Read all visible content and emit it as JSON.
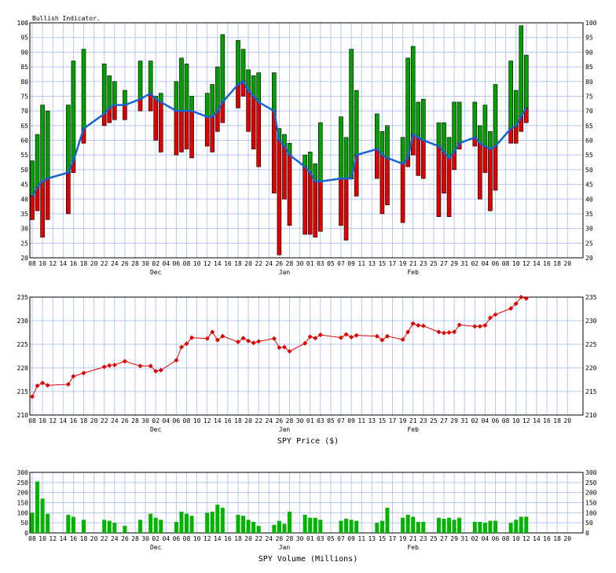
{
  "x_tick_labels": [
    "08",
    "10",
    "12",
    "14",
    "16",
    "18",
    "20",
    "22",
    "24",
    "26",
    "28",
    "30",
    "02",
    "04",
    "06",
    "08",
    "10",
    "12",
    "14",
    "16",
    "18",
    "20",
    "22",
    "24",
    "26",
    "28",
    "30",
    "01",
    "03",
    "05",
    "07",
    "09",
    "11",
    "13",
    "15",
    "17",
    "19",
    "21",
    "23",
    "25",
    "27",
    "29",
    "31",
    "02",
    "04",
    "06",
    "08",
    "10",
    "12",
    "14",
    "16",
    "18",
    "20"
  ],
  "month_labels": [
    {
      "label": "Dec",
      "slot": 24
    },
    {
      "label": "Jan",
      "slot": 49
    },
    {
      "label": "Feb",
      "slot": 74
    }
  ],
  "colors": {
    "up": "#00a000",
    "down": "#e00000",
    "line": "#1464d2",
    "price": "#e00000",
    "grid": "#b4c8f0",
    "volume": "#00b400"
  },
  "chart_data": [
    {
      "type": "bar",
      "title": "Bullish Indicator.",
      "ylim": [
        20,
        100
      ],
      "yticks": [
        20,
        25,
        30,
        35,
        40,
        45,
        50,
        55,
        60,
        65,
        70,
        75,
        80,
        85,
        90,
        95,
        100
      ],
      "candles": [
        {
          "slot": 0,
          "high": 53,
          "low": 33,
          "avg": 41
        },
        {
          "slot": 1,
          "high": 62,
          "low": 36,
          "avg": 44
        },
        {
          "slot": 2,
          "high": 72,
          "low": 27,
          "avg": 46
        },
        {
          "slot": 3,
          "high": 70,
          "low": 33,
          "avg": 47
        },
        {
          "slot": 7,
          "high": 72,
          "low": 35,
          "avg": 49
        },
        {
          "slot": 8,
          "high": 87,
          "low": 49,
          "avg": 53
        },
        {
          "slot": 10,
          "high": 91,
          "low": 59,
          "avg": 64
        },
        {
          "slot": 14,
          "high": 86,
          "low": 65,
          "avg": 69
        },
        {
          "slot": 15,
          "high": 82,
          "low": 66,
          "avg": 71
        },
        {
          "slot": 16,
          "high": 80,
          "low": 67,
          "avg": 72
        },
        {
          "slot": 18,
          "high": 77,
          "low": 67,
          "avg": 72
        },
        {
          "slot": 21,
          "high": 87,
          "low": 70,
          "avg": 74
        },
        {
          "slot": 23,
          "high": 87,
          "low": 70,
          "avg": 76
        },
        {
          "slot": 24,
          "high": 75,
          "low": 60,
          "avg": 74
        },
        {
          "slot": 25,
          "high": 76,
          "low": 56,
          "avg": 73
        },
        {
          "slot": 28,
          "high": 80,
          "low": 55,
          "avg": 70
        },
        {
          "slot": 29,
          "high": 88,
          "low": 56,
          "avg": 70
        },
        {
          "slot": 30,
          "high": 86,
          "low": 57,
          "avg": 70
        },
        {
          "slot": 31,
          "high": 75,
          "low": 54,
          "avg": 70
        },
        {
          "slot": 34,
          "high": 76,
          "low": 58,
          "avg": 68
        },
        {
          "slot": 35,
          "high": 79,
          "low": 56,
          "avg": 68
        },
        {
          "slot": 36,
          "high": 85,
          "low": 63,
          "avg": 70
        },
        {
          "slot": 37,
          "high": 96,
          "low": 66,
          "avg": 73
        },
        {
          "slot": 40,
          "high": 94,
          "low": 71,
          "avg": 79
        },
        {
          "slot": 41,
          "high": 91,
          "low": 75,
          "avg": 80
        },
        {
          "slot": 42,
          "high": 84,
          "low": 63,
          "avg": 77
        },
        {
          "slot": 43,
          "high": 82,
          "low": 57,
          "avg": 75
        },
        {
          "slot": 44,
          "high": 83,
          "low": 51,
          "avg": 73
        },
        {
          "slot": 47,
          "high": 83,
          "low": 42,
          "avg": 70
        },
        {
          "slot": 48,
          "high": 64,
          "low": 21,
          "avg": 60
        },
        {
          "slot": 49,
          "high": 62,
          "low": 40,
          "avg": 58
        },
        {
          "slot": 50,
          "high": 59,
          "low": 31,
          "avg": 55
        },
        {
          "slot": 53,
          "high": 55,
          "low": 28,
          "avg": 51
        },
        {
          "slot": 54,
          "high": 56,
          "low": 28,
          "avg": 49
        },
        {
          "slot": 55,
          "high": 52,
          "low": 27,
          "avg": 46
        },
        {
          "slot": 56,
          "high": 66,
          "low": 29,
          "avg": 46
        },
        {
          "slot": 60,
          "high": 68,
          "low": 31,
          "avg": 47
        },
        {
          "slot": 61,
          "high": 61,
          "low": 26,
          "avg": 47
        },
        {
          "slot": 62,
          "high": 91,
          "low": 47,
          "avg": 47
        },
        {
          "slot": 63,
          "high": 77,
          "low": 41,
          "avg": 55
        },
        {
          "slot": 67,
          "high": 69,
          "low": 47,
          "avg": 57
        },
        {
          "slot": 68,
          "high": 63,
          "low": 35,
          "avg": 55
        },
        {
          "slot": 69,
          "high": 65,
          "low": 38,
          "avg": 54
        },
        {
          "slot": 72,
          "high": 61,
          "low": 32,
          "avg": 52
        },
        {
          "slot": 73,
          "high": 88,
          "low": 51,
          "avg": 54
        },
        {
          "slot": 74,
          "high": 92,
          "low": 55,
          "avg": 62
        },
        {
          "slot": 75,
          "high": 73,
          "low": 48,
          "avg": 61
        },
        {
          "slot": 76,
          "high": 74,
          "low": 47,
          "avg": 60
        },
        {
          "slot": 79,
          "high": 66,
          "low": 34,
          "avg": 58
        },
        {
          "slot": 80,
          "high": 66,
          "low": 42,
          "avg": 56
        },
        {
          "slot": 81,
          "high": 61,
          "low": 34,
          "avg": 54
        },
        {
          "slot": 82,
          "high": 73,
          "low": 50,
          "avg": 56
        },
        {
          "slot": 83,
          "high": 73,
          "low": 57,
          "avg": 59
        },
        {
          "slot": 86,
          "high": 73,
          "low": 58,
          "avg": 61
        },
        {
          "slot": 87,
          "high": 65,
          "low": 40,
          "avg": 59
        },
        {
          "slot": 88,
          "high": 72,
          "low": 49,
          "avg": 58
        },
        {
          "slot": 89,
          "high": 63,
          "low": 36,
          "avg": 57
        },
        {
          "slot": 90,
          "high": 79,
          "low": 43,
          "avg": 58
        },
        {
          "slot": 93,
          "high": 87,
          "low": 59,
          "avg": 64
        },
        {
          "slot": 94,
          "high": 77,
          "low": 59,
          "avg": 65
        },
        {
          "slot": 95,
          "high": 99,
          "low": 63,
          "avg": 68
        },
        {
          "slot": 96,
          "high": 89,
          "low": 66,
          "avg": 71
        }
      ]
    },
    {
      "type": "line",
      "xlabel": "SPY Price ($)",
      "ylim": [
        210,
        235
      ],
      "yticks": [
        210,
        215,
        220,
        225,
        230,
        235
      ],
      "points": [
        {
          "slot": 0,
          "value": 213.9
        },
        {
          "slot": 1,
          "value": 216.2
        },
        {
          "slot": 2,
          "value": 216.8
        },
        {
          "slot": 3,
          "value": 216.3
        },
        {
          "slot": 7,
          "value": 216.5
        },
        {
          "slot": 8,
          "value": 218.2
        },
        {
          "slot": 10,
          "value": 218.9
        },
        {
          "slot": 14,
          "value": 220.2
        },
        {
          "slot": 15,
          "value": 220.5
        },
        {
          "slot": 16,
          "value": 220.6
        },
        {
          "slot": 18,
          "value": 221.4
        },
        {
          "slot": 21,
          "value": 220.4
        },
        {
          "slot": 23,
          "value": 220.4
        },
        {
          "slot": 24,
          "value": 219.3
        },
        {
          "slot": 25,
          "value": 219.5
        },
        {
          "slot": 28,
          "value": 221.6
        },
        {
          "slot": 29,
          "value": 224.4
        },
        {
          "slot": 30,
          "value": 225.1
        },
        {
          "slot": 31,
          "value": 226.4
        },
        {
          "slot": 34,
          "value": 226.2
        },
        {
          "slot": 35,
          "value": 227.6
        },
        {
          "slot": 36,
          "value": 225.9
        },
        {
          "slot": 37,
          "value": 226.7
        },
        {
          "slot": 40,
          "value": 225.5
        },
        {
          "slot": 41,
          "value": 226.3
        },
        {
          "slot": 42,
          "value": 225.7
        },
        {
          "slot": 43,
          "value": 225.3
        },
        {
          "slot": 44,
          "value": 225.6
        },
        {
          "slot": 47,
          "value": 226.2
        },
        {
          "slot": 48,
          "value": 224.3
        },
        {
          "slot": 49,
          "value": 224.4
        },
        {
          "slot": 50,
          "value": 223.5
        },
        {
          "slot": 53,
          "value": 225.2
        },
        {
          "slot": 54,
          "value": 226.6
        },
        {
          "slot": 55,
          "value": 226.3
        },
        {
          "slot": 56,
          "value": 227.0
        },
        {
          "slot": 60,
          "value": 226.4
        },
        {
          "slot": 61,
          "value": 227.1
        },
        {
          "slot": 62,
          "value": 226.5
        },
        {
          "slot": 63,
          "value": 226.9
        },
        {
          "slot": 67,
          "value": 226.7
        },
        {
          "slot": 68,
          "value": 225.9
        },
        {
          "slot": 69,
          "value": 226.7
        },
        {
          "slot": 72,
          "value": 226.0
        },
        {
          "slot": 73,
          "value": 227.6
        },
        {
          "slot": 74,
          "value": 229.4
        },
        {
          "slot": 75,
          "value": 229.0
        },
        {
          "slot": 76,
          "value": 228.9
        },
        {
          "slot": 79,
          "value": 227.6
        },
        {
          "slot": 80,
          "value": 227.4
        },
        {
          "slot": 81,
          "value": 227.5
        },
        {
          "slot": 82,
          "value": 227.6
        },
        {
          "slot": 83,
          "value": 229.1
        },
        {
          "slot": 86,
          "value": 228.8
        },
        {
          "slot": 87,
          "value": 228.8
        },
        {
          "slot": 88,
          "value": 229.0
        },
        {
          "slot": 89,
          "value": 230.6
        },
        {
          "slot": 90,
          "value": 231.3
        },
        {
          "slot": 93,
          "value": 232.6
        },
        {
          "slot": 94,
          "value": 233.6
        },
        {
          "slot": 95,
          "value": 235.0
        },
        {
          "slot": 96,
          "value": 234.7
        }
      ]
    },
    {
      "type": "bar",
      "xlabel": "SPY Volume (Millions)",
      "ylim": [
        0,
        300
      ],
      "yticks": [
        0,
        50,
        100,
        150,
        200,
        250,
        300
      ],
      "bars": [
        {
          "slot": 0,
          "value": 100
        },
        {
          "slot": 1,
          "value": 255
        },
        {
          "slot": 2,
          "value": 170
        },
        {
          "slot": 3,
          "value": 95
        },
        {
          "slot": 7,
          "value": 90
        },
        {
          "slot": 8,
          "value": 80
        },
        {
          "slot": 10,
          "value": 65
        },
        {
          "slot": 14,
          "value": 65
        },
        {
          "slot": 15,
          "value": 60
        },
        {
          "slot": 16,
          "value": 50
        },
        {
          "slot": 18,
          "value": 35
        },
        {
          "slot": 21,
          "value": 65
        },
        {
          "slot": 23,
          "value": 95
        },
        {
          "slot": 24,
          "value": 75
        },
        {
          "slot": 25,
          "value": 65
        },
        {
          "slot": 28,
          "value": 55
        },
        {
          "slot": 29,
          "value": 105
        },
        {
          "slot": 30,
          "value": 95
        },
        {
          "slot": 31,
          "value": 85
        },
        {
          "slot": 34,
          "value": 100
        },
        {
          "slot": 35,
          "value": 105
        },
        {
          "slot": 36,
          "value": 140
        },
        {
          "slot": 37,
          "value": 125
        },
        {
          "slot": 40,
          "value": 90
        },
        {
          "slot": 41,
          "value": 85
        },
        {
          "slot": 42,
          "value": 65
        },
        {
          "slot": 43,
          "value": 55
        },
        {
          "slot": 44,
          "value": 35
        },
        {
          "slot": 47,
          "value": 40
        },
        {
          "slot": 48,
          "value": 60
        },
        {
          "slot": 49,
          "value": 45
        },
        {
          "slot": 50,
          "value": 105
        },
        {
          "slot": 53,
          "value": 90
        },
        {
          "slot": 54,
          "value": 75
        },
        {
          "slot": 55,
          "value": 75
        },
        {
          "slot": 56,
          "value": 65
        },
        {
          "slot": 60,
          "value": 60
        },
        {
          "slot": 61,
          "value": 70
        },
        {
          "slot": 62,
          "value": 65
        },
        {
          "slot": 63,
          "value": 60
        },
        {
          "slot": 67,
          "value": 50
        },
        {
          "slot": 68,
          "value": 60
        },
        {
          "slot": 69,
          "value": 125
        },
        {
          "slot": 72,
          "value": 75
        },
        {
          "slot": 73,
          "value": 90
        },
        {
          "slot": 74,
          "value": 80
        },
        {
          "slot": 75,
          "value": 55
        },
        {
          "slot": 76,
          "value": 55
        },
        {
          "slot": 79,
          "value": 75
        },
        {
          "slot": 80,
          "value": 70
        },
        {
          "slot": 81,
          "value": 75
        },
        {
          "slot": 82,
          "value": 65
        },
        {
          "slot": 83,
          "value": 75
        },
        {
          "slot": 86,
          "value": 55
        },
        {
          "slot": 87,
          "value": 55
        },
        {
          "slot": 88,
          "value": 50
        },
        {
          "slot": 89,
          "value": 60
        },
        {
          "slot": 90,
          "value": 60
        },
        {
          "slot": 93,
          "value": 50
        },
        {
          "slot": 94,
          "value": 65
        },
        {
          "slot": 95,
          "value": 80
        },
        {
          "slot": 96,
          "value": 80
        }
      ]
    }
  ]
}
